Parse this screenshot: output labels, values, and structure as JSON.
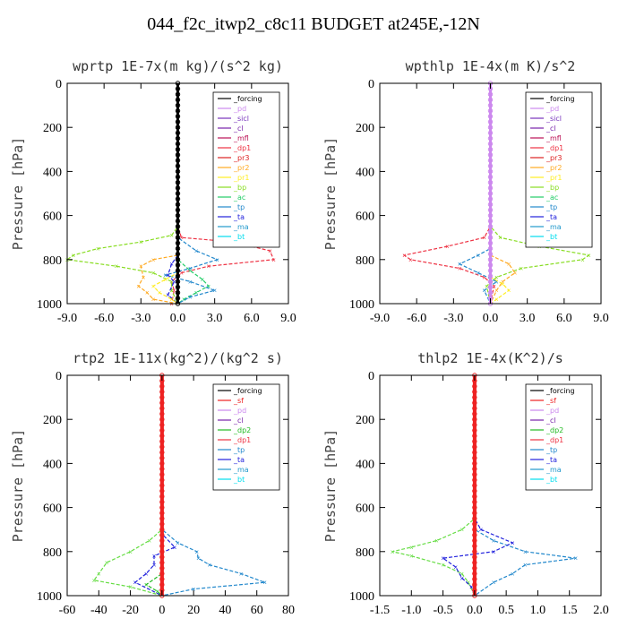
{
  "title": "044_f2c_itwp2_c8c11  BUDGET at245E,-12N",
  "colors": {
    "forcing": "#000000",
    "pd": "#cc88ee",
    "sicl": "#7733bb",
    "cl": "#7722aa",
    "mfl": "#bb1155",
    "dp1": "#ee3344",
    "pr3": "#dd2222",
    "pr2": "#ffaa22",
    "pr1": "#ffee22",
    "bp": "#88dd22",
    "ac": "#22cc66",
    "tp": "#2288cc",
    "ta": "#2222dd",
    "ma": "#2299cc",
    "bt": "#00ddee",
    "sf": "#ee2222",
    "dp2": "#22bb22",
    "dp1b": "#66dd44"
  },
  "chart_data": [
    {
      "type": "line",
      "title": "wprtp  1E-7x(m kg)/(s^2 kg)",
      "ylabel": "Pressure [hPa]",
      "xlim": [
        -9,
        9
      ],
      "ylim": [
        1000,
        0
      ],
      "xticks": [
        "-9.0",
        "-6.0",
        "-3.0",
        "0.0",
        "3.0",
        "6.0",
        "9.0"
      ],
      "yticks": [
        "0",
        "200",
        "400",
        "600",
        "800",
        "1000"
      ],
      "legend": [
        "_forcing",
        "_pd",
        "_sicl",
        "_cl",
        "_mfl",
        "_dp1",
        "_pr3",
        "_pr2",
        "_pr1",
        "_bp",
        "_ac",
        "_tp",
        "_ta",
        "_ma",
        "_bt"
      ],
      "series": [
        {
          "name": "_dp1",
          "ckey": "dp1",
          "y": [
            0,
            650,
            700,
            720,
            760,
            800,
            830,
            860,
            900,
            940,
            1000
          ],
          "values": [
            0,
            0,
            0.3,
            4.5,
            7.5,
            7.8,
            2.5,
            0.3,
            -0.5,
            -0.3,
            -0.5
          ]
        },
        {
          "name": "_bp",
          "ckey": "bp",
          "y": [
            0,
            650,
            690,
            720,
            750,
            780,
            800,
            830,
            860,
            900,
            940,
            1000
          ],
          "values": [
            0,
            0,
            -0.5,
            -3,
            -6.5,
            -8.5,
            -9,
            -5,
            -2,
            -0.5,
            -0.5,
            0
          ]
        },
        {
          "name": "_ac",
          "ckey": "ac",
          "y": [
            0,
            800,
            850,
            890,
            920,
            950,
            980,
            1000
          ],
          "values": [
            0,
            0,
            1.0,
            2.0,
            2.5,
            1.5,
            0.5,
            0
          ]
        },
        {
          "name": "_tp",
          "ckey": "tp",
          "y": [
            0,
            700,
            760,
            800,
            840,
            870,
            900,
            940,
            970,
            1000
          ],
          "values": [
            0,
            0,
            1.5,
            3.2,
            1.0,
            -1.0,
            1.0,
            3.0,
            1.0,
            0
          ]
        },
        {
          "name": "_ta",
          "ckey": "ta",
          "y": [
            0,
            780,
            820,
            870,
            900,
            960,
            1000
          ],
          "values": [
            0,
            0,
            -0.5,
            -0.8,
            -0.3,
            -0.8,
            0
          ]
        },
        {
          "name": "_pr2",
          "ckey": "pr2",
          "y": [
            0,
            780,
            800,
            830,
            880,
            920,
            950,
            980,
            1000
          ],
          "values": [
            0,
            0,
            -2.0,
            -3.0,
            -2.8,
            -3.2,
            -2.5,
            -2.0,
            0
          ]
        },
        {
          "name": "_pr1",
          "ckey": "pr1",
          "y": [
            0,
            860,
            890,
            920,
            950,
            980,
            1000
          ],
          "values": [
            0,
            0,
            -1.0,
            -2.0,
            -1.5,
            -0.5,
            0
          ]
        },
        {
          "name": "_forcing",
          "ckey": "forcing",
          "y": [
            0,
            1000
          ],
          "values": [
            0,
            0
          ],
          "width": 3
        }
      ]
    },
    {
      "type": "line",
      "title": "wpthlp  1E-4x(m K)/s^2",
      "ylabel": "Pressure [hPa]",
      "xlim": [
        -9,
        9
      ],
      "ylim": [
        1000,
        0
      ],
      "xticks": [
        "-9.0",
        "-6.0",
        "-3.0",
        "0.0",
        "3.0",
        "6.0",
        "9.0"
      ],
      "yticks": [
        "0",
        "200",
        "400",
        "600",
        "800",
        "1000"
      ],
      "legend": [
        "_forcing",
        "_pd",
        "_sicl",
        "_cl",
        "_mfl",
        "_dp1",
        "_pr3",
        "_pr2",
        "_pr1",
        "_bp",
        "_ac",
        "_tp",
        "_ta",
        "_ma",
        "_bt"
      ],
      "series": [
        {
          "name": "_dp1",
          "ckey": "dp1",
          "y": [
            0,
            650,
            700,
            740,
            780,
            800,
            840,
            880,
            920,
            1000
          ],
          "values": [
            0,
            0,
            -0.5,
            -3.5,
            -7,
            -6.5,
            -2.5,
            -0.5,
            0.3,
            0
          ]
        },
        {
          "name": "_bp",
          "ckey": "bp",
          "y": [
            0,
            650,
            700,
            740,
            780,
            800,
            840,
            880,
            920,
            1000
          ],
          "values": [
            0,
            0,
            0.8,
            4.0,
            8.0,
            7.5,
            2.5,
            0.5,
            -0.3,
            0
          ]
        },
        {
          "name": "_tp",
          "ckey": "tp",
          "y": [
            0,
            750,
            780,
            820,
            860,
            900,
            940,
            1000
          ],
          "values": [
            0,
            0,
            -1.0,
            -2.5,
            -1.0,
            0.5,
            -0.5,
            0
          ]
        },
        {
          "name": "_pr2",
          "ckey": "pr2",
          "y": [
            0,
            780,
            820,
            860,
            900,
            940,
            1000
          ],
          "values": [
            0,
            0,
            1.5,
            2.0,
            1.0,
            0.5,
            0
          ]
        },
        {
          "name": "_pr1",
          "ckey": "pr1",
          "y": [
            0,
            880,
            910,
            940,
            980,
            1000
          ],
          "values": [
            0,
            0,
            1.0,
            1.5,
            0.5,
            0
          ]
        },
        {
          "name": "_forcing",
          "ckey": "pd",
          "y": [
            0,
            1000
          ],
          "values": [
            0,
            0
          ],
          "width": 3
        }
      ]
    },
    {
      "type": "line",
      "title": "rtp2  1E-11x(kg^2)/(kg^2 s)",
      "ylabel": "Pressure [hPa]",
      "xlim": [
        -60,
        80
      ],
      "ylim": [
        1000,
        0
      ],
      "xticks": [
        "-60",
        "-40",
        "-20",
        "0",
        "20",
        "40",
        "60",
        "80"
      ],
      "yticks": [
        "0",
        "200",
        "400",
        "600",
        "800",
        "1000"
      ],
      "legend": [
        "_forcing",
        "_sf",
        "_pd",
        "_cl",
        "_dp2",
        "_dp1",
        "_tp",
        "_ta",
        "_ma",
        "_bt"
      ],
      "series": [
        {
          "name": "_dp1",
          "ckey": "dp1b",
          "y": [
            0,
            700,
            750,
            800,
            850,
            900,
            930,
            960,
            1000
          ],
          "values": [
            0,
            0,
            -8,
            -20,
            -35,
            -40,
            -43,
            -20,
            0
          ]
        },
        {
          "name": "_tp",
          "ckey": "tp",
          "y": [
            0,
            700,
            760,
            800,
            830,
            860,
            900,
            940,
            970,
            1000
          ],
          "values": [
            0,
            0,
            10,
            22,
            23,
            30,
            50,
            65,
            20,
            0
          ]
        },
        {
          "name": "_ta",
          "ckey": "ta",
          "y": [
            0,
            720,
            780,
            820,
            860,
            900,
            940,
            1000
          ],
          "values": [
            0,
            0,
            8,
            -5,
            -5,
            -10,
            -17,
            0
          ]
        },
        {
          "name": "_dp2",
          "ckey": "dp2",
          "y": [
            0,
            900,
            950,
            980,
            1000
          ],
          "values": [
            0,
            0,
            -10,
            -3,
            0
          ]
        },
        {
          "name": "_forcing",
          "ckey": "sf",
          "y": [
            0,
            1000
          ],
          "values": [
            0,
            0
          ],
          "width": 4
        }
      ]
    },
    {
      "type": "line",
      "title": "thlp2  1E-4x(K^2)/s",
      "ylabel": "Pressure [hPa]",
      "xlim": [
        -1.5,
        2.0
      ],
      "ylim": [
        1000,
        0
      ],
      "xticks": [
        "-1.5",
        "-1.0",
        "-0.5",
        "0.0",
        "0.5",
        "1.0",
        "1.5",
        "2.0"
      ],
      "yticks": [
        "0",
        "200",
        "400",
        "600",
        "800",
        "1000"
      ],
      "legend": [
        "_forcing",
        "_sf",
        "_pd",
        "_cl",
        "_dp2",
        "_dp1",
        "_tp",
        "_ta",
        "_ma",
        "_bt"
      ],
      "series": [
        {
          "name": "_dp1",
          "ckey": "dp1b",
          "y": [
            0,
            650,
            700,
            750,
            780,
            800,
            820,
            860,
            900,
            940,
            1000
          ],
          "values": [
            0,
            0,
            -0.2,
            -0.6,
            -1.0,
            -1.3,
            -1.0,
            -0.5,
            -0.2,
            -0.1,
            0
          ]
        },
        {
          "name": "_tp",
          "ckey": "tp",
          "y": [
            0,
            700,
            750,
            800,
            830,
            860,
            900,
            940,
            1000
          ],
          "values": [
            0,
            0,
            0.3,
            0.8,
            1.6,
            0.8,
            0.6,
            0.3,
            0
          ]
        },
        {
          "name": "_ta",
          "ckey": "ta",
          "y": [
            0,
            650,
            700,
            760,
            800,
            830,
            870,
            920,
            960,
            1000
          ],
          "values": [
            0,
            0,
            0.1,
            0.6,
            0.3,
            -0.5,
            -0.3,
            -0.2,
            -0.05,
            0
          ]
        },
        {
          "name": "_forcing",
          "ckey": "sf",
          "y": [
            0,
            1000
          ],
          "values": [
            0,
            0
          ],
          "width": 4
        }
      ]
    }
  ]
}
